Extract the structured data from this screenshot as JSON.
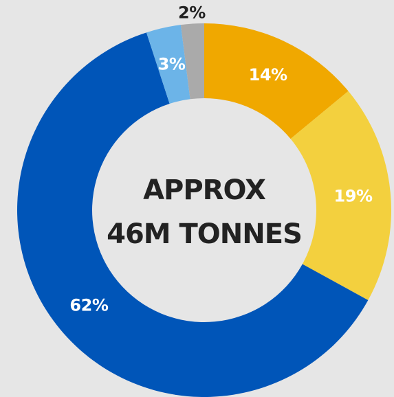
{
  "chart_data": {
    "type": "pie",
    "variant": "donut",
    "center_label": {
      "line1": "APPROX",
      "line2": "46M TONNES"
    },
    "slices": [
      {
        "label": "14%",
        "value": 14,
        "color": "#f0a800",
        "label_color": "#ffffff"
      },
      {
        "label": "19%",
        "value": 19,
        "color": "#f3d03e",
        "label_color": "#ffffff"
      },
      {
        "label": "62%",
        "value": 62,
        "color": "#0055b8",
        "label_color": "#ffffff"
      },
      {
        "label": "3%",
        "value": 3,
        "color": "#6cb4e8",
        "label_color": "#ffffff"
      },
      {
        "label": "2%",
        "value": 2,
        "color": "#aaaaaa",
        "label_color": "#222222",
        "label_outside": true
      }
    ]
  }
}
